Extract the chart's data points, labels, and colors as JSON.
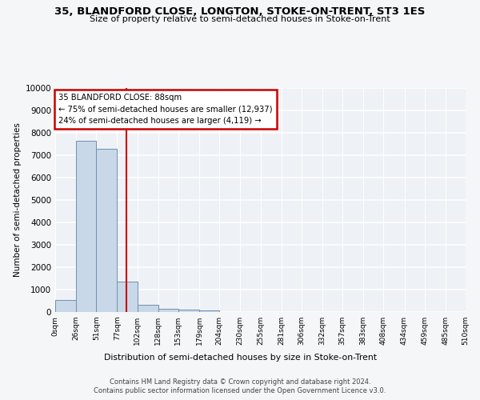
{
  "title": "35, BLANDFORD CLOSE, LONGTON, STOKE-ON-TRENT, ST3 1ES",
  "subtitle": "Size of property relative to semi-detached houses in Stoke-on-Trent",
  "xlabel": "Distribution of semi-detached houses by size in Stoke-on-Trent",
  "ylabel": "Number of semi-detached properties",
  "bin_labels": [
    "0sqm",
    "26sqm",
    "51sqm",
    "77sqm",
    "102sqm",
    "128sqm",
    "153sqm",
    "179sqm",
    "204sqm",
    "230sqm",
    "255sqm",
    "281sqm",
    "306sqm",
    "332sqm",
    "357sqm",
    "383sqm",
    "408sqm",
    "434sqm",
    "459sqm",
    "485sqm",
    "510sqm"
  ],
  "bar_values": [
    550,
    7650,
    7280,
    1370,
    310,
    155,
    95,
    75,
    0,
    0,
    0,
    0,
    0,
    0,
    0,
    0,
    0,
    0,
    0,
    0
  ],
  "bar_color": "#c8d8e8",
  "bar_edge_color": "#7090b0",
  "vline_x": 88,
  "annotation_title": "35 BLANDFORD CLOSE: 88sqm",
  "annotation_line1": "← 75% of semi-detached houses are smaller (12,937)",
  "annotation_line2": "24% of semi-detached houses are larger (4,119) →",
  "annotation_box_color": "#ffffff",
  "annotation_box_edge_color": "#cc0000",
  "vline_color": "#cc0000",
  "yticks": [
    0,
    1000,
    2000,
    3000,
    4000,
    5000,
    6000,
    7000,
    8000,
    9000,
    10000
  ],
  "footer_line1": "Contains HM Land Registry data © Crown copyright and database right 2024.",
  "footer_line2": "Contains public sector information licensed under the Open Government Licence v3.0.",
  "background_color": "#f4f6f8",
  "plot_background_color": "#eef1f5",
  "grid_color": "#ffffff"
}
